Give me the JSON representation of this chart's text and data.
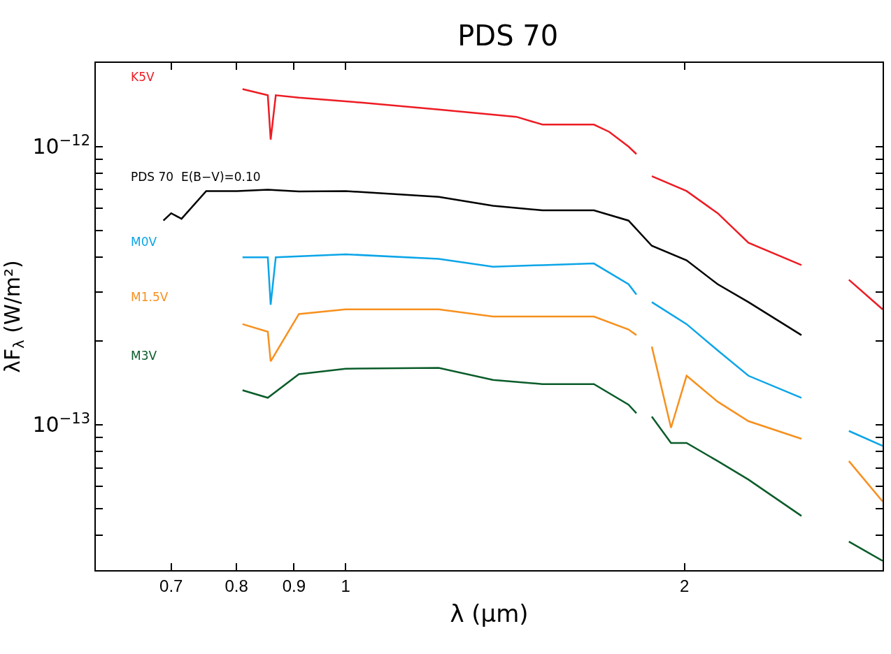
{
  "chart_data": {
    "type": "line",
    "title": "PDS 70",
    "xlabel": "λ (μm)",
    "ylabel": "λF$_{λ}$ (W/m²)",
    "log": "xy",
    "grid": false,
    "legend": false,
    "marker": "none",
    "line_style": "solid",
    "xlim": [
      0.6,
      3.0
    ],
    "ylim": [
      3e-14,
      2e-12
    ],
    "xticks": [
      0.7,
      0.8,
      0.9,
      1,
      2
    ],
    "yticks": [
      {
        "value": 3e-14,
        "label": null
      },
      {
        "value": 4e-14,
        "label": null
      },
      {
        "value": 5e-14,
        "label": null
      },
      {
        "value": 6e-14,
        "label": null
      },
      {
        "value": 7e-14,
        "label": null
      },
      {
        "value": 8e-14,
        "label": null
      },
      {
        "value": 9e-14,
        "label": null
      },
      {
        "value": 1e-13,
        "label": "10$^{−13}$"
      },
      {
        "value": 2e-13,
        "label": null
      },
      {
        "value": 3e-13,
        "label": null
      },
      {
        "value": 4e-13,
        "label": null
      },
      {
        "value": 5e-13,
        "label": null
      },
      {
        "value": 6e-13,
        "label": null
      },
      {
        "value": 7e-13,
        "label": null
      },
      {
        "value": 8e-13,
        "label": null
      },
      {
        "value": 9e-13,
        "label": null
      },
      {
        "value": 1e-12,
        "label": "10$^{−12}$"
      }
    ],
    "series": [
      {
        "name": "K5V",
        "color": "#ed1c24",
        "x": [
          0.81,
          0.853,
          0.858,
          0.867,
          0.909,
          1.032,
          1.21,
          1.418,
          1.496,
          1.558,
          1.662,
          1.715,
          1.784,
          1.813,
          1.85,
          1.871,
          2.009,
          2.141,
          2.28,
          2.541,
          2.7,
          2.8,
          3.0
        ],
        "values": [
          1.61e-12,
          1.53e-12,
          1.06e-12,
          1.53e-12,
          1.5e-12,
          1.44e-12,
          1.36e-12,
          1.28e-12,
          1.2e-12,
          1.2e-12,
          1.2e-12,
          1.13e-12,
          1e-12,
          9.4e-13,
          null,
          7.83e-13,
          6.92e-13,
          5.76e-13,
          4.51e-13,
          3.75e-13,
          null,
          3.32e-13,
          2.6e-13
        ]
      },
      {
        "name": "PDS 70  E(B−V)=0.10",
        "color": "#000000",
        "x": [
          0.689,
          0.7,
          0.715,
          0.752,
          0.801,
          0.853,
          0.909,
          1.0,
          1.21,
          1.352,
          1.496,
          1.662,
          1.784,
          1.871,
          2.009,
          2.141,
          2.28,
          2.541
        ],
        "values": [
          5.42e-13,
          5.76e-13,
          5.5e-13,
          6.92e-13,
          6.92e-13,
          7e-13,
          6.9e-13,
          6.92e-13,
          6.6e-13,
          6.13e-13,
          5.9e-13,
          5.9e-13,
          5.42e-13,
          4.4e-13,
          3.9e-13,
          3.2e-13,
          2.76e-13,
          2.1e-13
        ]
      },
      {
        "name": "M0V",
        "color": "#0ba5e8",
        "x": [
          0.81,
          0.853,
          0.858,
          0.867,
          1.0,
          1.21,
          1.352,
          1.496,
          1.662,
          1.784,
          1.813,
          1.85,
          1.871,
          2.009,
          2.141,
          2.28,
          2.541,
          2.7,
          2.8,
          3.0
        ],
        "values": [
          4e-13,
          4e-13,
          2.7e-13,
          4e-13,
          4.1e-13,
          3.95e-13,
          3.7e-13,
          3.75e-13,
          3.8e-13,
          3.2e-13,
          2.94e-13,
          null,
          2.76e-13,
          2.3e-13,
          1.85e-13,
          1.5e-13,
          1.25e-13,
          null,
          9.5e-14,
          8.4e-14
        ]
      },
      {
        "name": "M1.5V",
        "color": "#f7901e",
        "x": [
          0.81,
          0.853,
          0.858,
          0.909,
          1.0,
          1.21,
          1.352,
          1.496,
          1.662,
          1.784,
          1.813,
          1.85,
          1.871,
          1.946,
          2.009,
          2.141,
          2.28,
          2.541,
          2.7,
          2.8,
          3.0
        ],
        "values": [
          2.3e-13,
          2.16e-13,
          1.69e-13,
          2.5e-13,
          2.6e-13,
          2.6e-13,
          2.45e-13,
          2.45e-13,
          2.45e-13,
          2.2e-13,
          2.1e-13,
          null,
          1.91e-13,
          9.75e-14,
          1.5e-13,
          1.21e-13,
          1.03e-13,
          8.9e-14,
          null,
          7.4e-14,
          5.3e-14
        ]
      },
      {
        "name": "M3V",
        "color": "#0a5c2a",
        "x": [
          0.81,
          0.853,
          0.909,
          1.0,
          1.21,
          1.352,
          1.496,
          1.662,
          1.784,
          1.813,
          1.85,
          1.871,
          1.946,
          2.009,
          2.141,
          2.28,
          2.541,
          2.7,
          2.8,
          3.0
        ],
        "values": [
          1.33e-13,
          1.25e-13,
          1.52e-13,
          1.59e-13,
          1.6e-13,
          1.45e-13,
          1.4e-13,
          1.4e-13,
          1.18e-13,
          1.1e-13,
          null,
          1.07e-13,
          8.6e-14,
          8.6e-14,
          7.4e-14,
          6.35e-14,
          4.7e-14,
          null,
          3.8e-14,
          3.24e-14
        ]
      }
    ]
  }
}
